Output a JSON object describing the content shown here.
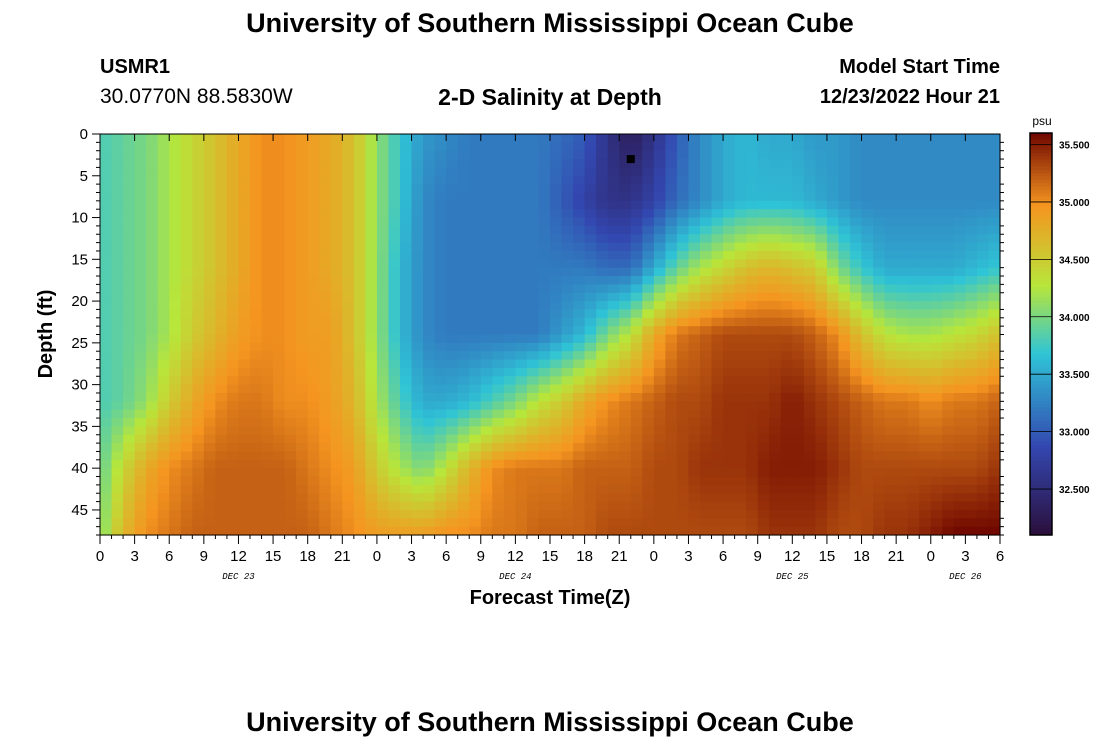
{
  "header": {
    "title": "University of Southern Mississippi Ocean Cube",
    "station_id": "USMR1",
    "coordinates": "30.0770N  88.5830W",
    "subtitle": "2-D Salinity at Depth",
    "model_start_label": "Model Start Time",
    "model_start_value": "12/23/2022 Hour 21"
  },
  "footer": {
    "title": "University of Southern Mississippi Ocean Cube"
  },
  "chart_data": {
    "type": "heatmap",
    "title": "2-D Salinity at Depth",
    "xlabel": "Forecast Time(Z)",
    "ylabel": "Depth (ft)",
    "colorbar_label": "psu",
    "x_tick_labels": [
      "0",
      "3",
      "6",
      "9",
      "12",
      "15",
      "18",
      "21",
      "0",
      "3",
      "6",
      "9",
      "12",
      "15",
      "18",
      "21",
      "0",
      "3",
      "6",
      "9",
      "12",
      "15",
      "18",
      "21",
      "0",
      "3",
      "6"
    ],
    "x_range_hours": [
      0,
      78
    ],
    "day_labels": [
      {
        "label": "DEC 23",
        "hour": 12
      },
      {
        "label": "DEC 24",
        "hour": 36
      },
      {
        "label": "DEC 25",
        "hour": 60
      },
      {
        "label": "DEC 26",
        "hour": 75
      }
    ],
    "ylim": [
      0,
      48
    ],
    "y_ticks": [
      0,
      5,
      10,
      15,
      20,
      25,
      30,
      35,
      40,
      45
    ],
    "y_inverted": true,
    "colorbar_range": [
      32.1,
      35.6
    ],
    "colorbar_ticks": [
      "32.500",
      "33.000",
      "33.500",
      "34.000",
      "34.500",
      "35.000",
      "35.500"
    ],
    "colorbar_tick_values": [
      32.5,
      33.0,
      33.5,
      34.0,
      34.5,
      35.0,
      35.5
    ],
    "colors": {
      "low": "#2b0f3c",
      "mid_low": "#3347b0",
      "mid": "#2fc4d6",
      "mid_high": "#b8e63a",
      "high_mid": "#f59520",
      "high": "#6f0600"
    },
    "marker": {
      "hour": 46,
      "depth": 3
    },
    "columns": {
      "hours": [
        0,
        2,
        4,
        6,
        8,
        10,
        12,
        14,
        16,
        18,
        20,
        22,
        24,
        26,
        28,
        30,
        32,
        34,
        36,
        38,
        40,
        42,
        44,
        46,
        48,
        50,
        52,
        54,
        56,
        58,
        60,
        62,
        64,
        66,
        68,
        70,
        72,
        74,
        76,
        78
      ],
      "depths": [
        0,
        8,
        16,
        24,
        32,
        40,
        48
      ],
      "salinity": [
        [
          33.8,
          33.8,
          33.8,
          33.8,
          33.8,
          33.9,
          34.0
        ],
        [
          33.9,
          33.9,
          33.9,
          33.9,
          33.9,
          34.4,
          34.7
        ],
        [
          34.0,
          34.0,
          34.0,
          34.0,
          34.1,
          34.8,
          35.0
        ],
        [
          34.2,
          34.2,
          34.2,
          34.2,
          34.5,
          35.0,
          35.1
        ],
        [
          34.4,
          34.4,
          34.4,
          34.5,
          34.8,
          35.1,
          35.2
        ],
        [
          34.6,
          34.6,
          34.6,
          34.7,
          35.0,
          35.2,
          35.2
        ],
        [
          34.8,
          34.8,
          34.8,
          34.9,
          35.1,
          35.2,
          35.2
        ],
        [
          35.0,
          35.0,
          35.0,
          35.0,
          35.1,
          35.2,
          35.2
        ],
        [
          35.0,
          35.0,
          35.0,
          35.0,
          35.0,
          35.2,
          35.2
        ],
        [
          34.9,
          34.9,
          34.9,
          34.9,
          35.0,
          35.1,
          35.2
        ],
        [
          34.8,
          34.8,
          34.8,
          34.9,
          34.9,
          35.0,
          35.1
        ],
        [
          34.6,
          34.6,
          34.6,
          34.6,
          34.7,
          34.9,
          35.0
        ],
        [
          34.1,
          34.1,
          34.1,
          34.1,
          34.2,
          34.5,
          34.9
        ],
        [
          33.7,
          33.7,
          33.6,
          33.6,
          33.8,
          34.2,
          34.9
        ],
        [
          33.4,
          33.3,
          33.3,
          33.3,
          33.5,
          34.0,
          34.9
        ],
        [
          33.3,
          33.2,
          33.2,
          33.2,
          33.5,
          34.3,
          35.0
        ],
        [
          33.2,
          33.2,
          33.2,
          33.2,
          33.6,
          34.7,
          35.0
        ],
        [
          33.2,
          33.2,
          33.2,
          33.2,
          33.8,
          35.0,
          35.1
        ],
        [
          33.2,
          33.2,
          33.2,
          33.2,
          34.0,
          35.1,
          35.1
        ],
        [
          33.2,
          33.2,
          33.2,
          33.2,
          34.3,
          35.1,
          35.2
        ],
        [
          33.1,
          33.0,
          33.2,
          33.4,
          34.5,
          35.1,
          35.2
        ],
        [
          33.0,
          32.8,
          33.2,
          33.6,
          34.8,
          35.2,
          35.2
        ],
        [
          32.6,
          32.6,
          33.1,
          34.0,
          35.0,
          35.2,
          35.3
        ],
        [
          32.3,
          32.6,
          33.1,
          34.3,
          35.1,
          35.2,
          35.3
        ],
        [
          32.6,
          32.8,
          33.5,
          34.8,
          35.2,
          35.3,
          35.3
        ],
        [
          33.0,
          33.1,
          33.9,
          35.1,
          35.3,
          35.3,
          35.3
        ],
        [
          33.3,
          33.3,
          34.2,
          35.2,
          35.3,
          35.4,
          35.3
        ],
        [
          33.5,
          33.5,
          34.4,
          35.3,
          35.4,
          35.4,
          35.3
        ],
        [
          33.6,
          33.6,
          34.6,
          35.3,
          35.4,
          35.4,
          35.3
        ],
        [
          33.5,
          33.6,
          34.7,
          35.3,
          35.4,
          35.5,
          35.4
        ],
        [
          33.5,
          33.6,
          34.6,
          35.3,
          35.5,
          35.5,
          35.4
        ],
        [
          33.4,
          33.5,
          34.5,
          35.2,
          35.4,
          35.5,
          35.4
        ],
        [
          33.4,
          33.4,
          34.0,
          35.0,
          35.3,
          35.4,
          35.3
        ],
        [
          33.3,
          33.3,
          33.7,
          34.6,
          35.2,
          35.3,
          35.3
        ],
        [
          33.3,
          33.3,
          33.5,
          34.3,
          35.1,
          35.3,
          35.4
        ],
        [
          33.3,
          33.3,
          33.5,
          34.2,
          35.1,
          35.3,
          35.4
        ],
        [
          33.3,
          33.3,
          33.5,
          34.2,
          35.0,
          35.3,
          35.5
        ],
        [
          33.3,
          33.3,
          33.5,
          34.3,
          35.1,
          35.3,
          35.6
        ],
        [
          33.3,
          33.3,
          33.6,
          34.4,
          35.1,
          35.3,
          35.6
        ],
        [
          33.3,
          33.3,
          33.7,
          34.6,
          35.2,
          35.4,
          35.6
        ]
      ]
    }
  }
}
